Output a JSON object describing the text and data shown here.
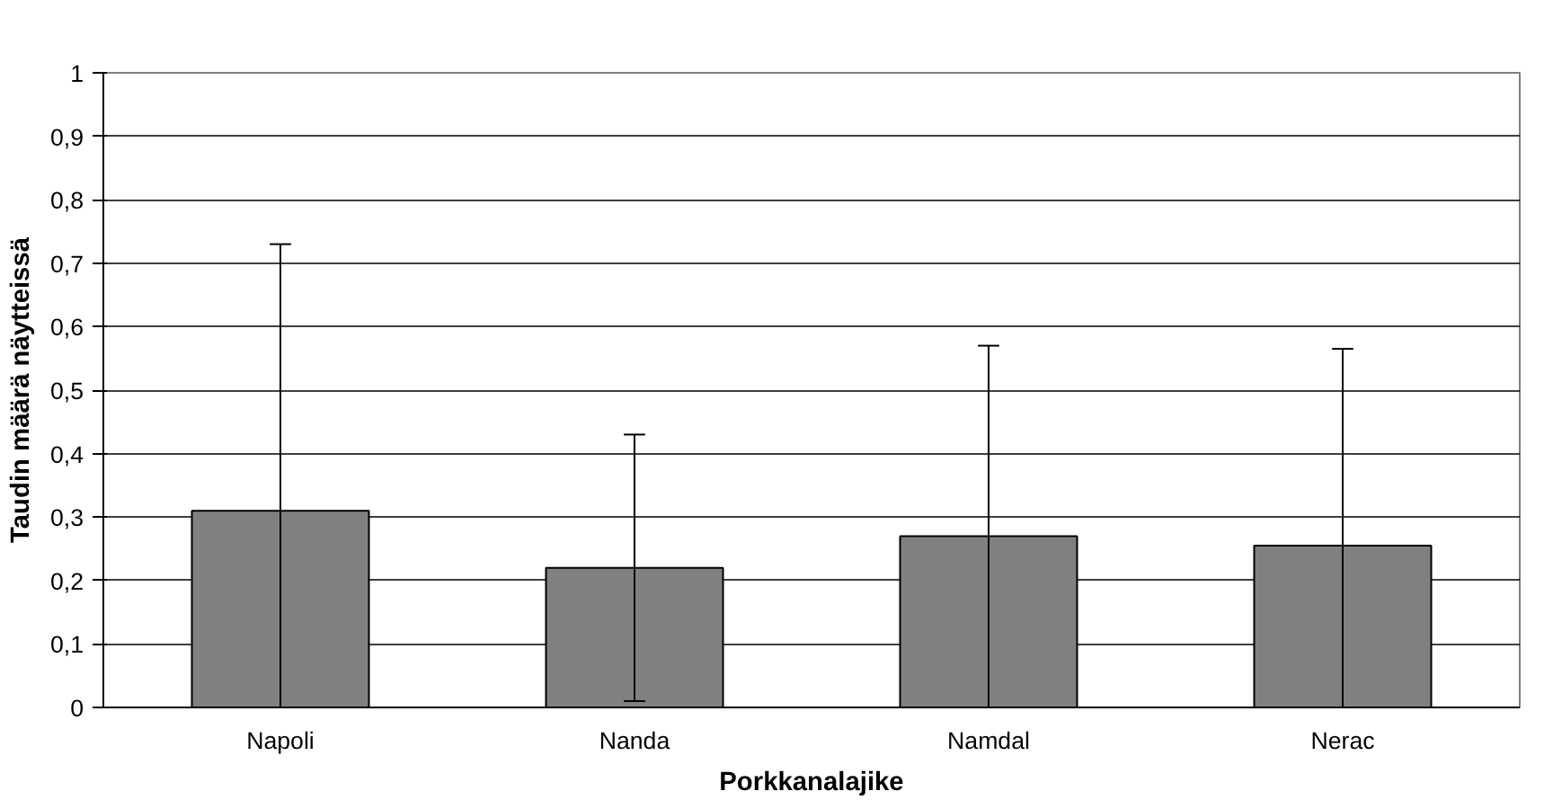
{
  "chart_data": {
    "type": "bar",
    "xlabel": "Porkkanalajike",
    "ylabel": "Taudin määrä näytteissä",
    "categories": [
      "Napoli",
      "Nanda",
      "Namdal",
      "Nerac"
    ],
    "values": [
      0.31,
      0.22,
      0.27,
      0.255
    ],
    "color": "#808080",
    "errors": [
      [
        0,
        0.73
      ],
      [
        0.01,
        0.43
      ],
      [
        0,
        0.57
      ],
      [
        0,
        0.565
      ]
    ],
    "ylim": [
      0,
      1
    ],
    "yticks": [
      0,
      {
        "value": 0.1,
        "label": "0,1"
      },
      {
        "value": 0.2,
        "label": "0,2"
      },
      {
        "value": 0.3,
        "label": "0,3"
      },
      {
        "value": 0.4,
        "label": "0,4"
      },
      {
        "value": 0.5,
        "label": "0,5"
      },
      {
        "value": 0.6,
        "label": "0,6"
      },
      {
        "value": 0.7,
        "label": "0,7"
      },
      {
        "value": 0.8,
        "label": "0,8"
      },
      {
        "value": 0.9,
        "label": "0,9"
      },
      1
    ],
    "grid": "y"
  }
}
